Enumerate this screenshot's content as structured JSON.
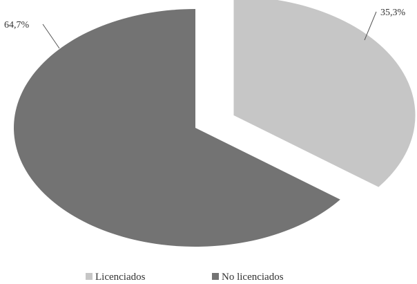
{
  "chart_data": {
    "type": "pie",
    "style": "3d-like exploded pie",
    "categories": [
      "Licenciados",
      "No licenciados"
    ],
    "values": [
      35.3,
      64.7
    ],
    "labels": [
      "35,3%",
      "64,7%"
    ],
    "colors": [
      "#c6c6c6",
      "#737373"
    ],
    "exploded": [
      true,
      false
    ],
    "legend_position": "bottom",
    "title": "",
    "xlabel": "",
    "ylabel": ""
  }
}
